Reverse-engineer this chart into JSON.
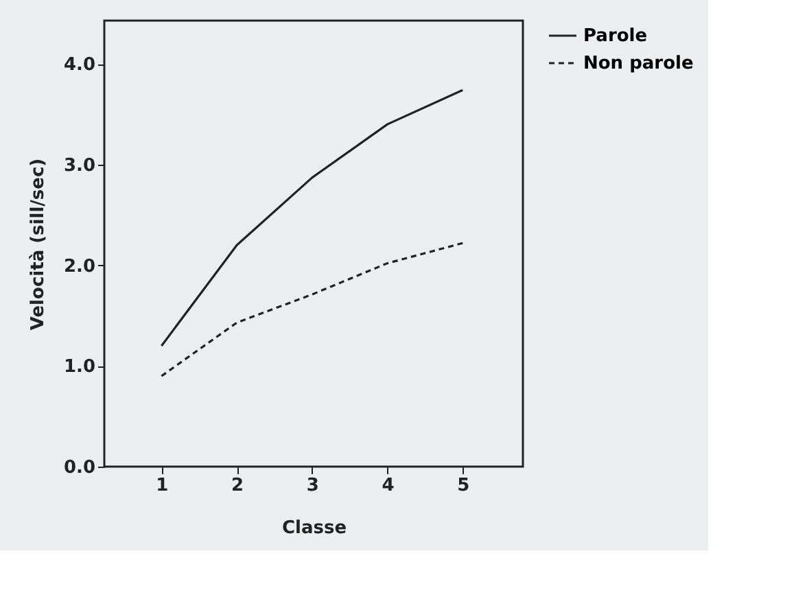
{
  "chart_data": {
    "type": "line",
    "xlabel": "Classe",
    "ylabel": "Velocità (sill/sec)",
    "x": [
      1,
      2,
      3,
      4,
      5
    ],
    "series": [
      {
        "name": "Parole",
        "color": "#222222",
        "line_style": "solid",
        "values": [
          1.2,
          2.2,
          2.87,
          3.4,
          3.74
        ]
      },
      {
        "name": "Non parole",
        "color": "#222222",
        "line_style": "dashed",
        "values": [
          0.9,
          1.43,
          1.71,
          2.02,
          2.22
        ]
      }
    ],
    "xlim": [
      0.24,
      5.8
    ],
    "xticks": [
      1,
      2,
      3,
      4,
      5
    ],
    "ylim": [
      0,
      4.43
    ],
    "yticks": [
      {
        "value": 0,
        "label": "0.0"
      },
      {
        "value": 1,
        "label": "1.0"
      },
      {
        "value": 2,
        "label": "2.0"
      },
      {
        "value": 3,
        "label": "3.0"
      },
      {
        "value": 4,
        "label": "4.0"
      }
    ],
    "grid": false,
    "legend": "top right",
    "marker": "none"
  }
}
